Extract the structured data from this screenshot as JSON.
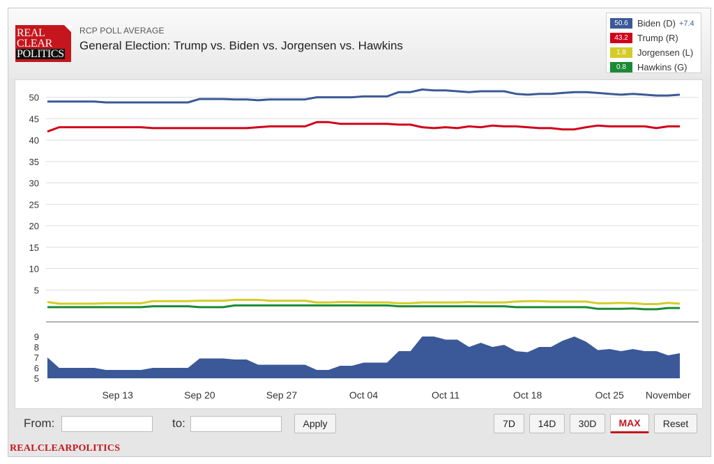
{
  "header": {
    "logo_lines": [
      "REAL",
      "CLEAR",
      "POLITICS"
    ],
    "subtitle": "RCP POLL AVERAGE",
    "title": "General Election: Trump vs. Biden vs. Jorgensen vs. Hawkins"
  },
  "legend": [
    {
      "value": "50.6",
      "label": "Biden (D)",
      "lead": "+7.4",
      "color": "#3b5998"
    },
    {
      "value": "43.2",
      "label": "Trump (R)",
      "lead": "",
      "color": "#d0021b"
    },
    {
      "value": "1.8",
      "label": "Jorgensen (L)",
      "lead": "",
      "color": "#d4cc28"
    },
    {
      "value": "0.8",
      "label": "Hawkins (G)",
      "lead": "",
      "color": "#1a8a36"
    }
  ],
  "controls": {
    "from_label": "From:",
    "to_label": "to:",
    "from_value": "",
    "to_value": "",
    "apply_label": "Apply",
    "range_buttons": [
      "7D",
      "14D",
      "30D",
      "MAX"
    ],
    "active_range": "MAX",
    "reset_label": "Reset"
  },
  "footer": {
    "brand": "REALCLEARPOLITICS"
  },
  "chart_data": [
    {
      "type": "line",
      "ylim": [
        0,
        54
      ],
      "yticks": [
        5,
        10,
        15,
        20,
        25,
        30,
        35,
        40,
        45,
        50
      ],
      "grid": true,
      "series": [
        {
          "name": "Biden (D)",
          "color": "#3b5998",
          "values": [
            49.0,
            49.0,
            49.0,
            49.0,
            49.0,
            48.8,
            48.8,
            48.8,
            48.8,
            48.8,
            48.8,
            48.8,
            48.8,
            49.6,
            49.6,
            49.6,
            49.5,
            49.5,
            49.3,
            49.5,
            49.5,
            49.5,
            49.5,
            50.0,
            50.0,
            50.0,
            50.0,
            50.2,
            50.2,
            50.2,
            51.2,
            51.2,
            51.8,
            51.6,
            51.6,
            51.4,
            51.2,
            51.4,
            51.4,
            51.4,
            50.8,
            50.6,
            50.8,
            50.8,
            51.0,
            51.2,
            51.2,
            51.0,
            50.8,
            50.6,
            50.8,
            50.6,
            50.4,
            50.4,
            50.6
          ]
        },
        {
          "name": "Trump (R)",
          "color": "#d0021b",
          "values": [
            42.0,
            43.0,
            43.0,
            43.0,
            43.0,
            43.0,
            43.0,
            43.0,
            43.0,
            42.8,
            42.8,
            42.8,
            42.8,
            42.8,
            42.8,
            42.8,
            42.8,
            42.8,
            43.0,
            43.2,
            43.2,
            43.2,
            43.2,
            44.2,
            44.2,
            43.8,
            43.8,
            43.8,
            43.8,
            43.8,
            43.6,
            43.6,
            43.0,
            42.8,
            43.0,
            42.8,
            43.2,
            43.0,
            43.4,
            43.2,
            43.2,
            43.0,
            42.8,
            42.8,
            42.5,
            42.5,
            43.0,
            43.4,
            43.2,
            43.2,
            43.2,
            43.2,
            42.8,
            43.2,
            43.2
          ]
        },
        {
          "name": "Jorgensen (L)",
          "color": "#d4cc28",
          "values": [
            2.2,
            1.8,
            1.8,
            1.8,
            1.8,
            1.9,
            1.9,
            1.9,
            1.9,
            2.4,
            2.4,
            2.4,
            2.4,
            2.5,
            2.5,
            2.5,
            2.7,
            2.7,
            2.7,
            2.5,
            2.5,
            2.5,
            2.5,
            2.1,
            2.1,
            2.2,
            2.2,
            2.1,
            2.1,
            2.1,
            1.9,
            1.9,
            2.1,
            2.1,
            2.1,
            2.1,
            2.2,
            2.1,
            2.1,
            2.1,
            2.3,
            2.4,
            2.4,
            2.3,
            2.3,
            2.3,
            2.3,
            1.9,
            1.9,
            2.0,
            1.9,
            1.7,
            1.7,
            2.0,
            1.8
          ]
        },
        {
          "name": "Hawkins (G)",
          "color": "#1a8a36",
          "values": [
            1.0,
            1.0,
            1.0,
            1.0,
            1.0,
            1.0,
            1.0,
            1.0,
            1.0,
            1.2,
            1.2,
            1.2,
            1.2,
            1.0,
            1.0,
            1.0,
            1.4,
            1.4,
            1.4,
            1.4,
            1.4,
            1.4,
            1.4,
            1.4,
            1.4,
            1.4,
            1.4,
            1.4,
            1.4,
            1.4,
            1.2,
            1.2,
            1.2,
            1.2,
            1.2,
            1.2,
            1.2,
            1.2,
            1.2,
            1.2,
            1.0,
            1.0,
            1.0,
            1.0,
            1.0,
            1.0,
            1.0,
            0.6,
            0.6,
            0.6,
            0.7,
            0.5,
            0.5,
            0.8,
            0.8
          ]
        }
      ]
    },
    {
      "type": "area",
      "ylim": [
        5,
        9
      ],
      "yticks": [
        5,
        6,
        7,
        8,
        9
      ],
      "series": [
        {
          "name": "",
          "color": "#3b5998",
          "values": [
            7.0,
            6.0,
            6.0,
            6.0,
            6.0,
            5.8,
            5.8,
            5.8,
            5.8,
            6.0,
            6.0,
            6.0,
            6.0,
            6.9,
            6.9,
            6.9,
            6.8,
            6.8,
            6.3,
            6.3,
            6.3,
            6.3,
            6.3,
            5.8,
            5.8,
            6.2,
            6.2,
            6.5,
            6.5,
            6.5,
            7.6,
            7.6,
            9.0,
            9.0,
            8.7,
            8.7,
            8.0,
            8.4,
            8.0,
            8.2,
            7.6,
            7.5,
            8.0,
            8.0,
            8.6,
            9.0,
            8.5,
            7.7,
            7.8,
            7.6,
            7.8,
            7.6,
            7.6,
            7.2,
            7.4
          ]
        }
      ]
    }
  ],
  "x_axis": {
    "ticks": [
      {
        "label": "Sep 13",
        "index": 6
      },
      {
        "label": "Sep 20",
        "index": 13
      },
      {
        "label": "Sep 27",
        "index": 20
      },
      {
        "label": "Oct 04",
        "index": 27
      },
      {
        "label": "Oct 11",
        "index": 34
      },
      {
        "label": "Oct 18",
        "index": 41
      },
      {
        "label": "Oct 25",
        "index": 48
      },
      {
        "label": "November",
        "index": 53
      }
    ]
  }
}
